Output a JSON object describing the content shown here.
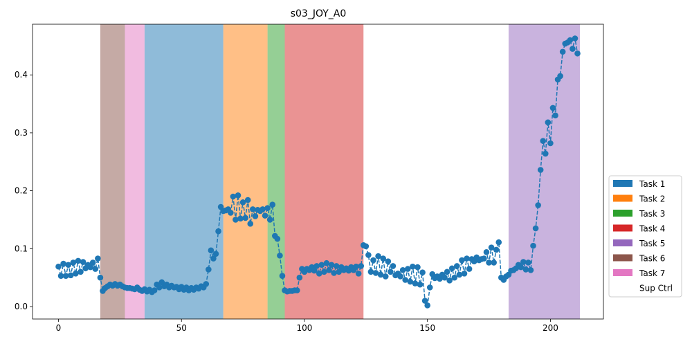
{
  "chart_data": {
    "type": "line",
    "title": "s03_JOY_A0",
    "x": [
      0,
      1,
      2,
      3,
      4,
      5,
      6,
      7,
      8,
      9,
      10,
      11,
      12,
      13,
      14,
      15,
      16,
      17,
      18,
      19,
      20,
      21,
      22,
      23,
      24,
      25,
      26,
      27,
      28,
      29,
      30,
      31,
      32,
      33,
      34,
      35,
      36,
      37,
      38,
      39,
      40,
      41,
      42,
      43,
      44,
      45,
      46,
      47,
      48,
      49,
      50,
      51,
      52,
      53,
      54,
      55,
      56,
      57,
      58,
      59,
      60,
      61,
      62,
      63,
      64,
      65,
      66,
      67,
      68,
      69,
      70,
      71,
      72,
      73,
      74,
      75,
      76,
      77,
      78,
      79,
      80,
      81,
      82,
      83,
      84,
      85,
      86,
      87,
      88,
      89,
      90,
      91,
      92,
      93,
      94,
      95,
      96,
      97,
      98,
      99,
      100,
      101,
      102,
      103,
      104,
      105,
      106,
      107,
      108,
      109,
      110,
      111,
      112,
      113,
      114,
      115,
      116,
      117,
      118,
      119,
      120,
      121,
      122,
      123,
      124,
      125,
      126,
      127,
      128,
      129,
      130,
      131,
      132,
      133,
      134,
      135,
      136,
      137,
      138,
      139,
      140,
      141,
      142,
      143,
      144,
      145,
      146,
      147,
      148,
      149,
      150,
      151,
      152,
      153,
      154,
      155,
      156,
      157,
      158,
      159,
      160,
      161,
      162,
      163,
      164,
      165,
      166,
      167,
      168,
      169,
      170,
      171,
      172,
      173,
      174,
      175,
      176,
      177,
      178,
      179,
      180,
      181,
      182,
      183,
      184,
      185,
      186,
      187,
      188,
      189,
      190,
      191,
      192,
      193,
      194,
      195,
      196,
      197,
      198,
      199,
      200,
      201,
      202,
      203,
      204,
      205,
      206,
      207,
      208,
      209,
      210,
      211
    ],
    "series": [
      {
        "color": "#1f77b4",
        "values": [
          0.069,
          0.053,
          0.074,
          0.053,
          0.072,
          0.054,
          0.076,
          0.057,
          0.079,
          0.06,
          0.077,
          0.066,
          0.072,
          0.068,
          0.076,
          0.065,
          0.083,
          0.05,
          0.027,
          0.032,
          0.035,
          0.038,
          0.036,
          0.039,
          0.036,
          0.038,
          0.035,
          0.033,
          0.032,
          0.032,
          0.031,
          0.03,
          0.033,
          0.029,
          0.027,
          0.03,
          0.026,
          0.029,
          0.025,
          0.028,
          0.038,
          0.033,
          0.042,
          0.035,
          0.038,
          0.033,
          0.036,
          0.033,
          0.034,
          0.03,
          0.034,
          0.029,
          0.033,
          0.028,
          0.032,
          0.029,
          0.033,
          0.031,
          0.035,
          0.033,
          0.039,
          0.064,
          0.097,
          0.083,
          0.091,
          0.13,
          0.172,
          0.165,
          0.166,
          0.168,
          0.162,
          0.19,
          0.15,
          0.192,
          0.152,
          0.18,
          0.153,
          0.184,
          0.143,
          0.168,
          0.156,
          0.167,
          0.165,
          0.168,
          0.157,
          0.17,
          0.15,
          0.176,
          0.122,
          0.117,
          0.088,
          0.053,
          0.028,
          0.026,
          0.027,
          0.027,
          0.028,
          0.028,
          0.05,
          0.065,
          0.06,
          0.065,
          0.063,
          0.068,
          0.062,
          0.07,
          0.057,
          0.072,
          0.06,
          0.075,
          0.063,
          0.072,
          0.058,
          0.07,
          0.06,
          0.068,
          0.063,
          0.066,
          0.062,
          0.068,
          0.063,
          0.069,
          0.057,
          0.07,
          0.106,
          0.104,
          0.089,
          0.06,
          0.08,
          0.058,
          0.087,
          0.055,
          0.083,
          0.052,
          0.078,
          0.06,
          0.07,
          0.054,
          0.057,
          0.052,
          0.063,
          0.046,
          0.065,
          0.043,
          0.069,
          0.04,
          0.068,
          0.038,
          0.059,
          0.01,
          0.002,
          0.033,
          0.056,
          0.049,
          0.052,
          0.048,
          0.055,
          0.05,
          0.06,
          0.045,
          0.066,
          0.05,
          0.07,
          0.055,
          0.08,
          0.057,
          0.083,
          0.065,
          0.082,
          0.078,
          0.085,
          0.08,
          0.082,
          0.083,
          0.094,
          0.076,
          0.102,
          0.076,
          0.098,
          0.111,
          0.05,
          0.046,
          0.052,
          0.055,
          0.062,
          0.063,
          0.066,
          0.072,
          0.068,
          0.077,
          0.064,
          0.076,
          0.063,
          0.105,
          0.135,
          0.175,
          0.236,
          0.286,
          0.264,
          0.318,
          0.282,
          0.343,
          0.33,
          0.392,
          0.398,
          0.44,
          0.454,
          0.456,
          0.46,
          0.445,
          0.463,
          0.437
        ]
      }
    ],
    "xlim": [
      -10.55,
      221.55
    ],
    "xticks": [
      0,
      50,
      100,
      150,
      200
    ],
    "ylim": [
      -0.0215,
      0.4875
    ],
    "yticks": [
      {
        "value": 0,
        "label": "0.0"
      },
      0.1,
      0.2,
      0.3,
      0.4
    ],
    "legend_position": "right",
    "legend": [
      {
        "name": "Task 1",
        "color": "#1f77b4",
        "spans": [
          [
            35,
            67
          ]
        ]
      },
      {
        "name": "Task 2",
        "color": "#ff7f0e",
        "spans": [
          [
            67,
            85
          ]
        ]
      },
      {
        "name": "Task 3",
        "color": "#2ca02c",
        "spans": [
          [
            85,
            92
          ]
        ]
      },
      {
        "name": "Task 4",
        "color": "#d62728",
        "spans": [
          [
            92,
            124
          ]
        ]
      },
      {
        "name": "Task 5",
        "color": "#9467bd",
        "spans": [
          [
            183,
            212
          ]
        ]
      },
      {
        "name": "Task 6",
        "color": "#8c564b",
        "spans": [
          [
            17,
            27
          ]
        ]
      },
      {
        "name": "Task 7",
        "color": "#e377c2",
        "spans": [
          [
            27,
            35
          ]
        ]
      },
      {
        "name": "Sup Ctrl",
        "color": "#ffffff"
      }
    ]
  }
}
